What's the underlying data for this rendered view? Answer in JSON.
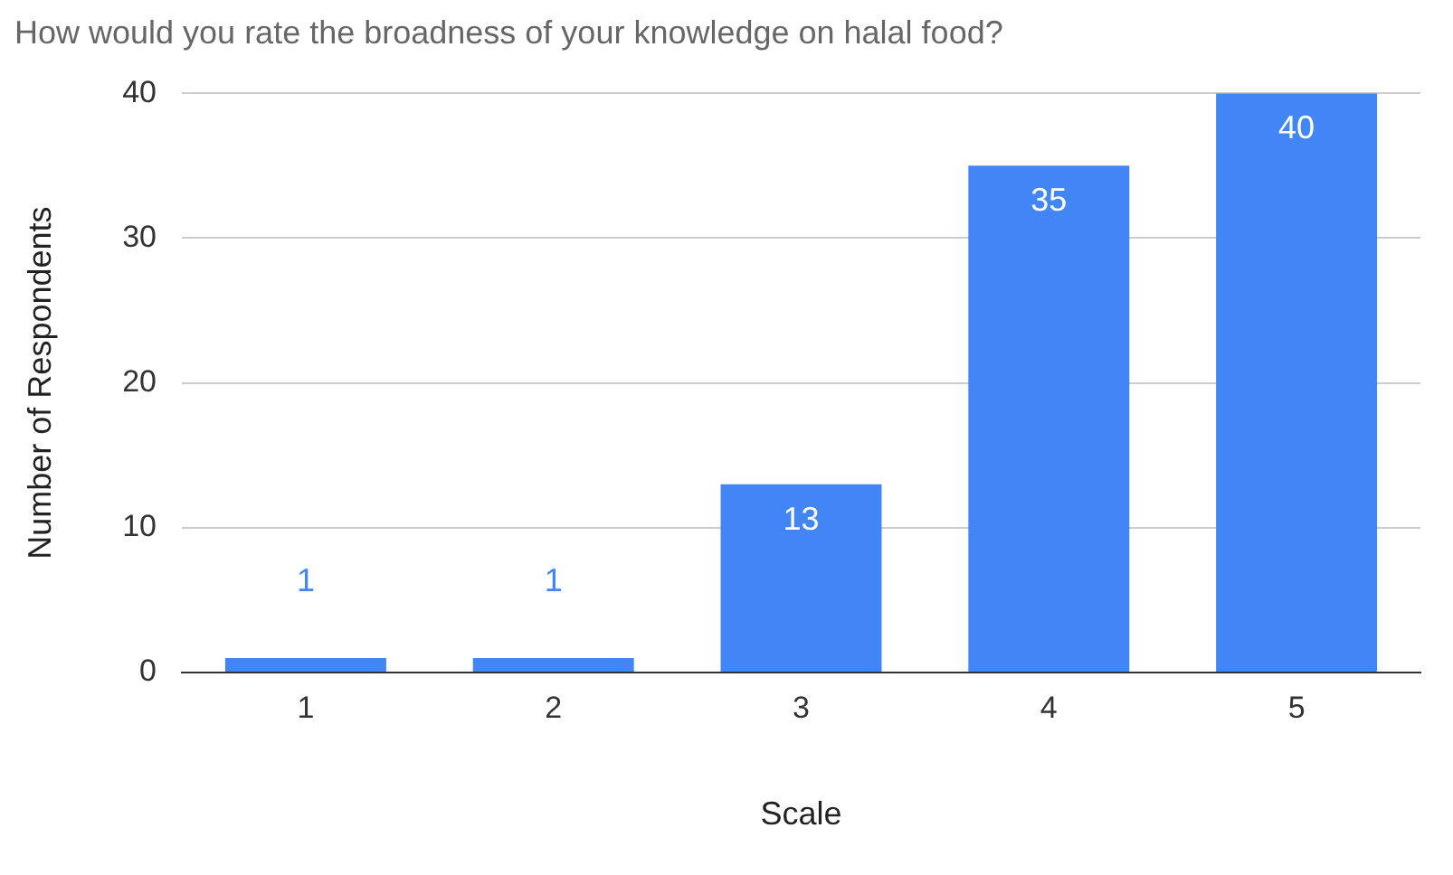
{
  "chart_data": {
    "type": "bar",
    "title": "How would you rate the broadness of your knowledge on halal food?",
    "xlabel": "Scale",
    "ylabel": "Number of Respondents",
    "categories": [
      "1",
      "2",
      "3",
      "4",
      "5"
    ],
    "values": [
      1,
      1,
      13,
      35,
      40
    ],
    "color": "#4285f4",
    "ylim": [
      0,
      40
    ],
    "yticks": [
      0,
      10,
      20,
      30,
      40
    ],
    "grid": "y",
    "data_labels": true,
    "legend": false
  }
}
